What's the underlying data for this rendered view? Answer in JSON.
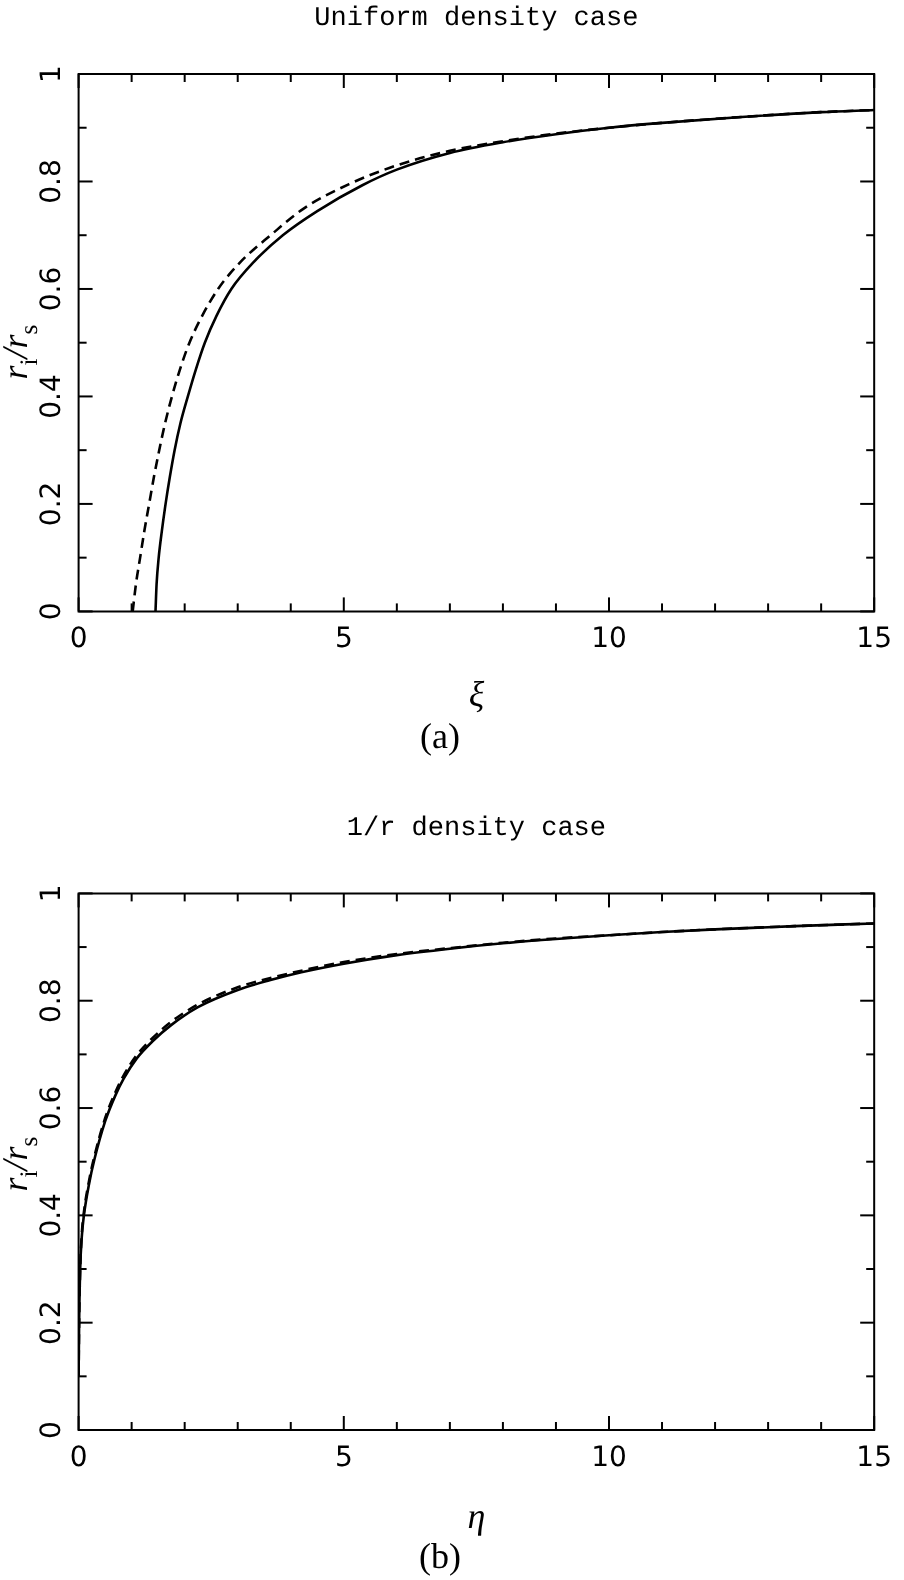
{
  "chart_data": [
    {
      "type": "line",
      "title": "Uniform density case",
      "xlabel": "ξ",
      "ylabel": "r$_{i}$/r$_{s}$",
      "annotations": [
        "(a)"
      ],
      "xlim": [
        0,
        15
      ],
      "ylim": [
        0,
        1
      ],
      "xticks": [
        0,
        {
          "value": 1,
          "label": null
        },
        {
          "value": 2,
          "label": null
        },
        {
          "value": 3,
          "label": null
        },
        {
          "value": 4,
          "label": null
        },
        5,
        {
          "value": 6,
          "label": null
        },
        {
          "value": 7,
          "label": null
        },
        {
          "value": 8,
          "label": null
        },
        {
          "value": 9,
          "label": null
        },
        10,
        {
          "value": 11,
          "label": null
        },
        {
          "value": 12,
          "label": null
        },
        {
          "value": 13,
          "label": null
        },
        {
          "value": 14,
          "label": null
        },
        15
      ],
      "yticks": [
        0,
        {
          "value": 0.1,
          "label": null
        },
        0.2,
        {
          "value": 0.3,
          "label": null
        },
        0.4,
        {
          "value": 0.5,
          "label": null
        },
        0.6,
        {
          "value": 0.7,
          "label": null
        },
        0.8,
        {
          "value": 0.9,
          "label": null
        },
        1
      ],
      "series": [
        {
          "color": "#000000",
          "line_style": "solid",
          "x": [
            1.45,
            1.47,
            1.51,
            1.57,
            1.64,
            1.72,
            1.81,
            1.92,
            2.06,
            2.21,
            2.38,
            2.6,
            2.88,
            3.3,
            3.85,
            4.5,
            5.35,
            6,
            7,
            8,
            9,
            10,
            11,
            12.5,
            14,
            15
          ],
          "values": [
            0,
            0.05,
            0.1,
            0.15,
            0.2,
            0.25,
            0.3,
            0.35,
            0.4,
            0.45,
            0.5,
            0.55,
            0.6,
            0.65,
            0.7,
            0.745,
            0.793,
            0.822,
            0.853,
            0.873,
            0.888,
            0.9,
            0.909,
            0.92,
            0.929,
            0.933
          ]
        },
        {
          "color": "#000000",
          "line_style": "dashed",
          "x": [
            1.02,
            1.08,
            1.16,
            1.24,
            1.33,
            1.42,
            1.52,
            1.63,
            1.76,
            1.91,
            2.09,
            2.33,
            2.63,
            3.05,
            3.62,
            4.25,
            5.1,
            6,
            7,
            8,
            9,
            10,
            11,
            12.5,
            14,
            15
          ],
          "values": [
            0,
            0.05,
            0.1,
            0.15,
            0.2,
            0.25,
            0.3,
            0.35,
            0.4,
            0.45,
            0.5,
            0.55,
            0.6,
            0.65,
            0.7,
            0.75,
            0.795,
            0.83,
            0.857,
            0.875,
            0.889,
            0.9,
            0.909,
            0.92,
            0.929,
            0.933
          ]
        }
      ]
    },
    {
      "type": "line",
      "title": "1/r density case",
      "xlabel": "η",
      "ylabel": "r$_{i}$/r$_{s}$",
      "annotations": [
        "(b)"
      ],
      "xlim": [
        0,
        15
      ],
      "ylim": [
        0,
        1
      ],
      "xticks": [
        0,
        {
          "value": 1,
          "label": null
        },
        {
          "value": 2,
          "label": null
        },
        {
          "value": 3,
          "label": null
        },
        {
          "value": 4,
          "label": null
        },
        5,
        {
          "value": 6,
          "label": null
        },
        {
          "value": 7,
          "label": null
        },
        {
          "value": 8,
          "label": null
        },
        {
          "value": 9,
          "label": null
        },
        10,
        {
          "value": 11,
          "label": null
        },
        {
          "value": 12,
          "label": null
        },
        {
          "value": 13,
          "label": null
        },
        {
          "value": 14,
          "label": null
        },
        15
      ],
      "yticks": [
        0,
        {
          "value": 0.1,
          "label": null
        },
        0.2,
        {
          "value": 0.3,
          "label": null
        },
        0.4,
        {
          "value": 0.5,
          "label": null
        },
        0.6,
        {
          "value": 0.7,
          "label": null
        },
        0.8,
        {
          "value": 0.9,
          "label": null
        },
        1
      ],
      "series": [
        {
          "color": "#000000",
          "line_style": "solid",
          "x": [
            0,
            0.01,
            0.03,
            0.06,
            0.1,
            0.2,
            0.3,
            0.5,
            0.7,
            0.85,
            1.1,
            1.4,
            1.75,
            2.25,
            3,
            3.6,
            4.2,
            5,
            6,
            7,
            8,
            9,
            10,
            11,
            12,
            13.5,
            15
          ],
          "values": [
            0.1,
            0.2,
            0.3,
            0.36,
            0.4,
            0.46,
            0.505,
            0.575,
            0.625,
            0.655,
            0.693,
            0.725,
            0.755,
            0.788,
            0.82,
            0.838,
            0.853,
            0.869,
            0.885,
            0.897,
            0.907,
            0.915,
            0.922,
            0.928,
            0.933,
            0.939,
            0.944
          ]
        },
        {
          "color": "#000000",
          "line_style": "dashed",
          "x": [
            0,
            0.01,
            0.03,
            0.06,
            0.1,
            0.2,
            0.3,
            0.5,
            0.7,
            0.85,
            1.1,
            1.4,
            1.75,
            2.25,
            3,
            3.6,
            4.2,
            5,
            6,
            7,
            8,
            9,
            10,
            11,
            12,
            13.5,
            15
          ],
          "values": [
            0.1,
            0.2,
            0.3,
            0.365,
            0.406,
            0.466,
            0.511,
            0.581,
            0.631,
            0.661,
            0.699,
            0.731,
            0.761,
            0.793,
            0.825,
            0.842,
            0.856,
            0.872,
            0.887,
            0.898,
            0.908,
            0.916,
            0.922,
            0.928,
            0.933,
            0.939,
            0.944
          ]
        }
      ]
    }
  ]
}
